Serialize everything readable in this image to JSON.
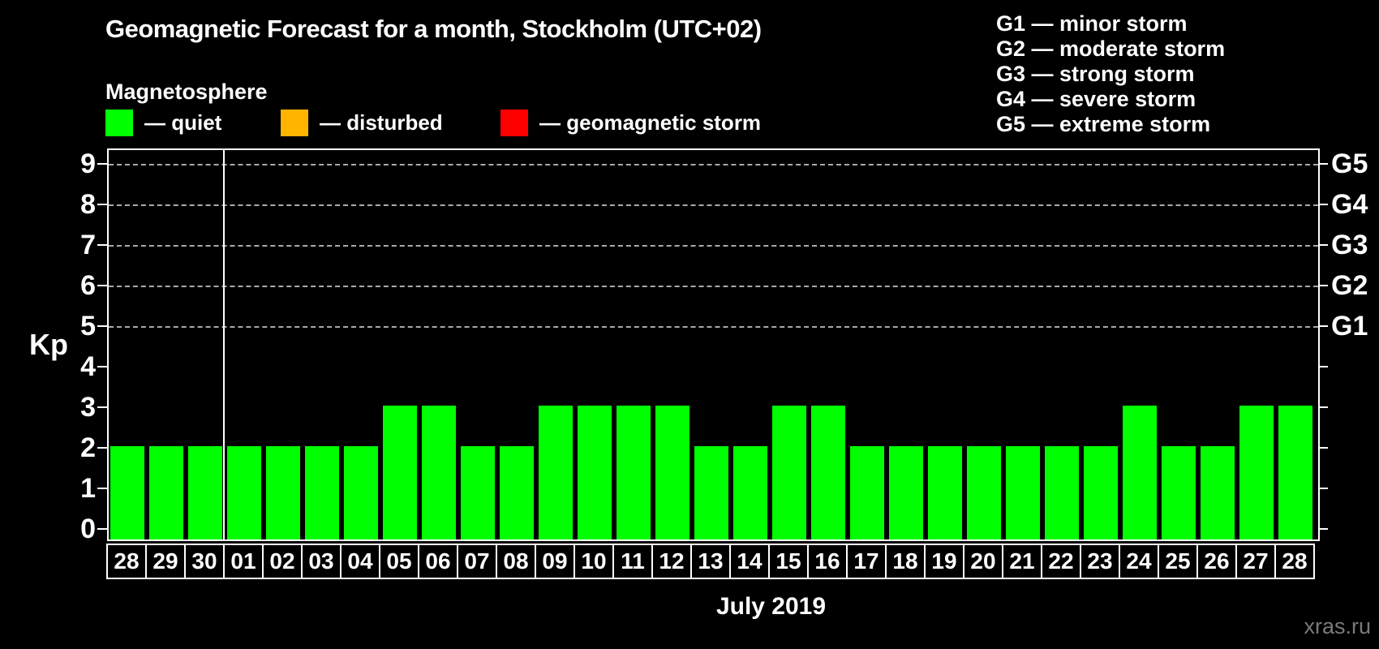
{
  "header": {
    "title": "Geomagnetic Forecast for a month, Stockholm (UTC+02)",
    "subtitle": "Magnetosphere"
  },
  "magnetosphere_legend": {
    "items": [
      {
        "name": "quiet",
        "label": "— quiet",
        "color": "#00ff00"
      },
      {
        "name": "disturbed",
        "label": "— disturbed",
        "color": "#ffb400"
      },
      {
        "name": "geomagnetic-storm",
        "label": "— geomagnetic storm",
        "color": "#ff0000"
      }
    ]
  },
  "storm_scale_legend": {
    "lines": [
      "G1 — minor storm",
      "G2 — moderate storm",
      "G3 — strong storm",
      "G4 — severe storm",
      "G5 — extreme storm"
    ]
  },
  "chart_data": {
    "type": "bar",
    "title": "Geomagnetic Forecast for a month, Stockholm (UTC+02)",
    "ylabel": "Kp",
    "xlabel": "July 2019",
    "ylim": [
      0,
      9.5
    ],
    "y_ticks": [
      0,
      1,
      2,
      3,
      4,
      5,
      6,
      7,
      8,
      9
    ],
    "gridlines_at": [
      5,
      6,
      7,
      8,
      9
    ],
    "grid_style": "horizontal dashed",
    "right_axis_labels": [
      {
        "kp": 5,
        "label": "G1"
      },
      {
        "kp": 6,
        "label": "G2"
      },
      {
        "kp": 7,
        "label": "G3"
      },
      {
        "kp": 8,
        "label": "G4"
      },
      {
        "kp": 9,
        "label": "G5"
      }
    ],
    "categories": [
      "28",
      "29",
      "30",
      "01",
      "02",
      "03",
      "04",
      "05",
      "06",
      "07",
      "08",
      "09",
      "10",
      "11",
      "12",
      "13",
      "14",
      "15",
      "16",
      "17",
      "18",
      "19",
      "20",
      "21",
      "22",
      "23",
      "24",
      "25",
      "26",
      "27",
      "28"
    ],
    "values": [
      2,
      2,
      2,
      2,
      2,
      2,
      2,
      3,
      3,
      2,
      2,
      3,
      3,
      3,
      3,
      2,
      2,
      3,
      3,
      2,
      2,
      2,
      2,
      2,
      2,
      2,
      3,
      2,
      2,
      3,
      3
    ],
    "bar_color": "#00ff00",
    "month_separator_after_index": 2,
    "month_label": "July 2019"
  },
  "footer": {
    "watermark": "xras.ru"
  }
}
